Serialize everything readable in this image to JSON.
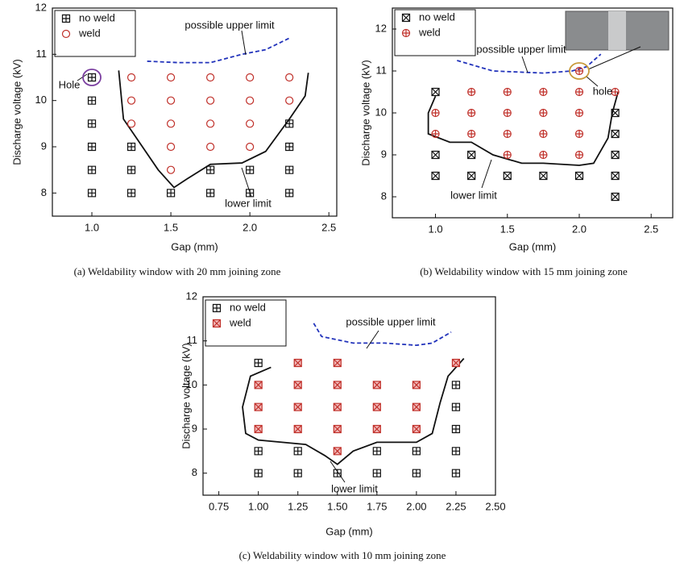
{
  "chart_data": [
    {
      "type": "scatter",
      "x_label": "Gap (mm)",
      "y_label": "Discharge voltage (kV)",
      "caption": "(a) Weldability window with 20 mm joining zone",
      "xlim": [
        0.75,
        2.55
      ],
      "ylim": [
        7.5,
        12
      ],
      "xticks": [
        {
          "value": 1,
          "label": "1.0"
        },
        1.5,
        {
          "value": 2,
          "label": "2.0"
        },
        2.5
      ],
      "yticks": [
        8,
        9,
        10,
        11,
        12
      ],
      "annotations": [
        "possible upper limit",
        "lower limit",
        "Hole"
      ],
      "series": [
        {
          "name": "no weld",
          "color": "#111111",
          "marker": "square-plus",
          "x": [
            1,
            1,
            1,
            1,
            1,
            1,
            1.25,
            1.25,
            1.25,
            1.5,
            1.75,
            1.75,
            2,
            2,
            2.25,
            2.25,
            2.25,
            2.25
          ],
          "values": [
            10.5,
            10,
            9.5,
            9,
            8.5,
            8,
            9,
            8.5,
            8,
            8,
            8.5,
            8,
            8.5,
            8,
            9.5,
            9,
            8.5,
            8
          ]
        },
        {
          "name": "weld",
          "color": "#c0302a",
          "marker": "circle",
          "x": [
            1.25,
            1.25,
            1.25,
            1.5,
            1.5,
            1.5,
            1.5,
            1.5,
            1.75,
            1.75,
            1.75,
            1.75,
            2,
            2,
            2,
            2,
            2.25,
            2.25
          ],
          "values": [
            10.5,
            10,
            9.5,
            10.5,
            10,
            9.5,
            9,
            8.5,
            10.5,
            10,
            9.5,
            9,
            10.5,
            10,
            9.5,
            9,
            10.5,
            10
          ]
        }
      ],
      "limits": [
        {
          "color": "#2233bb",
          "dashed": true,
          "x": [
            1.35,
            1.55,
            1.75,
            1.95,
            2.1,
            2.25
          ],
          "values": [
            10.85,
            10.82,
            10.82,
            11.0,
            11.1,
            11.35
          ]
        },
        {
          "color": "#111111",
          "dashed": false,
          "x": [
            1.17,
            1.2,
            1.3,
            1.42,
            1.52,
            1.6,
            1.75,
            1.95,
            2.1,
            2.25,
            2.35,
            2.37
          ],
          "values": [
            10.65,
            9.6,
            9.1,
            8.5,
            8.12,
            8.3,
            8.62,
            8.65,
            8.9,
            9.6,
            10.1,
            10.6
          ]
        }
      ]
    },
    {
      "type": "scatter",
      "x_label": "Gap (mm)",
      "y_label": "Discharge voltage (kV)",
      "caption": "(b) Weldability window with 15 mm joining zone",
      "xlim": [
        0.7,
        2.65
      ],
      "ylim": [
        7.5,
        12.5
      ],
      "xticks": [
        {
          "value": 1,
          "label": "1.0"
        },
        1.5,
        {
          "value": 2,
          "label": "2.0"
        },
        2.5
      ],
      "yticks": [
        8,
        9,
        10,
        11,
        12
      ],
      "annotations": [
        "possible upper limit",
        "lower limit",
        "hole"
      ],
      "series": [
        {
          "name": "no weld",
          "color": "#111111",
          "marker": "cross-box",
          "x": [
            1,
            1,
            1,
            1.25,
            1.25,
            1.5,
            1.75,
            2,
            2.25,
            2.25,
            2.25,
            2.25,
            2.25
          ],
          "values": [
            10.5,
            9,
            8.5,
            9,
            8.5,
            8.5,
            8.5,
            8.5,
            10,
            9.5,
            9,
            8.5,
            8
          ]
        },
        {
          "name": "weld",
          "color": "#c0302a",
          "marker": "circle-plus",
          "x": [
            1,
            1,
            1.25,
            1.25,
            1.25,
            1.5,
            1.5,
            1.5,
            1.5,
            1.75,
            1.75,
            1.75,
            1.75,
            2,
            2,
            2,
            2,
            2,
            2.25
          ],
          "values": [
            10,
            9.5,
            10.5,
            10,
            9.5,
            10.5,
            10,
            9.5,
            9,
            10.5,
            10,
            9.5,
            9,
            11,
            10.5,
            10,
            9.5,
            9,
            10.5
          ]
        }
      ],
      "limits": [
        {
          "color": "#2233bb",
          "dashed": true,
          "x": [
            1.15,
            1.4,
            1.75,
            1.95,
            2.05,
            2.15
          ],
          "values": [
            11.25,
            11.0,
            10.95,
            11.0,
            11.1,
            11.4
          ]
        },
        {
          "color": "#111111",
          "dashed": false,
          "x": [
            1.0,
            0.95,
            0.95,
            1.1,
            1.25,
            1.4,
            1.6,
            1.75,
            2.0,
            2.1,
            2.2,
            2.23,
            2.27
          ],
          "values": [
            10.4,
            10.0,
            9.5,
            9.3,
            9.3,
            9.0,
            8.8,
            8.8,
            8.75,
            8.8,
            9.4,
            10.0,
            10.5
          ]
        }
      ]
    },
    {
      "type": "scatter",
      "x_label": "Gap (mm)",
      "y_label": "Discharge voltage (kV)",
      "caption": "(c) Weldability window with 10 mm joining zone",
      "xlim": [
        0.65,
        2.5
      ],
      "ylim": [
        7.5,
        12
      ],
      "xticks": [
        {
          "value": 0.75,
          "label": "0.75"
        },
        {
          "value": 1,
          "label": "1.00"
        },
        1.25,
        {
          "value": 1.5,
          "label": "1.50"
        },
        1.75,
        {
          "value": 2,
          "label": "2.00"
        },
        2.25,
        {
          "value": 2.5,
          "label": "2.50"
        }
      ],
      "yticks": [
        8,
        9,
        10,
        11,
        12
      ],
      "annotations": [
        "possible upper limit",
        "lower limit"
      ],
      "series": [
        {
          "name": "no weld",
          "color": "#111111",
          "marker": "square-plus",
          "x": [
            1,
            1,
            1,
            1.25,
            1.25,
            1.5,
            1.75,
            1.75,
            2,
            2,
            2.25,
            2.25,
            2.25,
            2.25,
            2.25
          ],
          "values": [
            10.5,
            8.5,
            8,
            8.5,
            8,
            8,
            8.5,
            8,
            8.5,
            8,
            10,
            9.5,
            9,
            8.5,
            8
          ]
        },
        {
          "name": "weld",
          "color": "#c0302a",
          "marker": "square-x",
          "x": [
            1,
            1,
            1,
            1.25,
            1.25,
            1.25,
            1.25,
            1.5,
            1.5,
            1.5,
            1.5,
            1.5,
            1.75,
            1.75,
            1.75,
            2,
            2,
            2,
            2.25
          ],
          "values": [
            10,
            9.5,
            9,
            10.5,
            10,
            9.5,
            9,
            10.5,
            10,
            9.5,
            9,
            8.5,
            10,
            9.5,
            9,
            10,
            9.5,
            9,
            10.5
          ]
        }
      ],
      "limits": [
        {
          "color": "#2233bb",
          "dashed": true,
          "x": [
            1.35,
            1.4,
            1.6,
            1.8,
            2.0,
            2.1,
            2.22
          ],
          "values": [
            11.4,
            11.1,
            10.95,
            10.95,
            10.9,
            10.95,
            11.2
          ]
        },
        {
          "color": "#111111",
          "dashed": false,
          "x": [
            1.08,
            0.95,
            0.9,
            0.92,
            1.0,
            1.3,
            1.42,
            1.5,
            1.6,
            1.75,
            2.0,
            2.1,
            2.15,
            2.2,
            2.3
          ],
          "values": [
            10.4,
            10.2,
            9.5,
            8.9,
            8.75,
            8.65,
            8.4,
            8.2,
            8.5,
            8.7,
            8.7,
            8.9,
            9.6,
            10.2,
            10.6
          ]
        }
      ]
    }
  ]
}
